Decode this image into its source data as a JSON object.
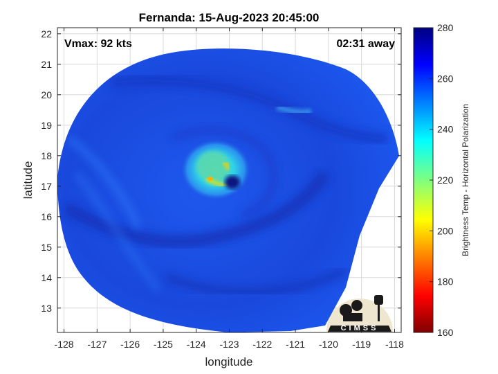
{
  "chart_data": {
    "type": "heatmap",
    "title": "Fernanda: 15-Aug-2023 20:45:00",
    "xlabel": "longitude",
    "ylabel": "latitude",
    "xlim": [
      -128.2,
      -117.8
    ],
    "ylim": [
      12.2,
      22.2
    ],
    "x_ticks": [
      -128,
      -127,
      -126,
      -125,
      -124,
      -123,
      -122,
      -121,
      -120,
      -119,
      -118
    ],
    "y_ticks": [
      13,
      14,
      15,
      16,
      17,
      18,
      19,
      20,
      21,
      22
    ],
    "grid": true,
    "colorbar": {
      "label": "Brightness Temp - Horizontal Polarization",
      "range": [
        160,
        280
      ],
      "ticks": [
        160,
        180,
        200,
        220,
        240,
        260,
        280
      ],
      "colormap": "jet",
      "placement": "right"
    },
    "annotations": {
      "vmax": "Vmax: 92 kts",
      "time_offset": "02:31 away"
    },
    "storm_center": {
      "lon": -122.9,
      "lat": 17.2
    },
    "values_description_free": true
  },
  "logo": {
    "text": "CIMSS"
  },
  "colors": {
    "background_field": "#1a4de0",
    "eye_wall": "#f4e400",
    "eye": "#0a1280"
  }
}
